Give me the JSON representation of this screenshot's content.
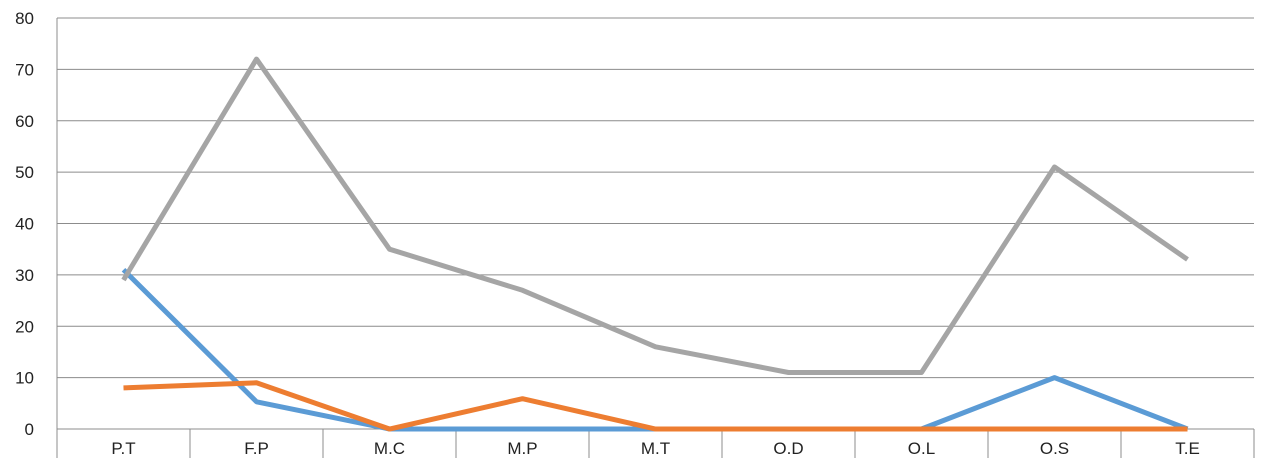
{
  "chart_data": {
    "type": "line",
    "title": "",
    "xlabel": "",
    "ylabel": "",
    "categories": [
      "P.T",
      "F.P",
      "M.C",
      "M.P",
      "M.T",
      "O.D",
      "O.L",
      "O.S",
      "T.E"
    ],
    "ylim": [
      0,
      80
    ],
    "yticks": [
      "0",
      "10",
      "20",
      "30",
      "40",
      "50",
      "60",
      "70",
      "80"
    ],
    "grid": true,
    "legend": "none",
    "series": [
      {
        "color": "#5b9bd5",
        "values": [
          31,
          5.3,
          0,
          0,
          0,
          0,
          0,
          10,
          0
        ]
      },
      {
        "color": "#ed7d31",
        "values": [
          8,
          9,
          0,
          5.9,
          0,
          0,
          0,
          0,
          0
        ]
      },
      {
        "color": "#a5a5a5",
        "values": [
          29,
          72,
          35,
          27,
          16,
          11,
          11,
          51,
          33
        ]
      }
    ]
  }
}
